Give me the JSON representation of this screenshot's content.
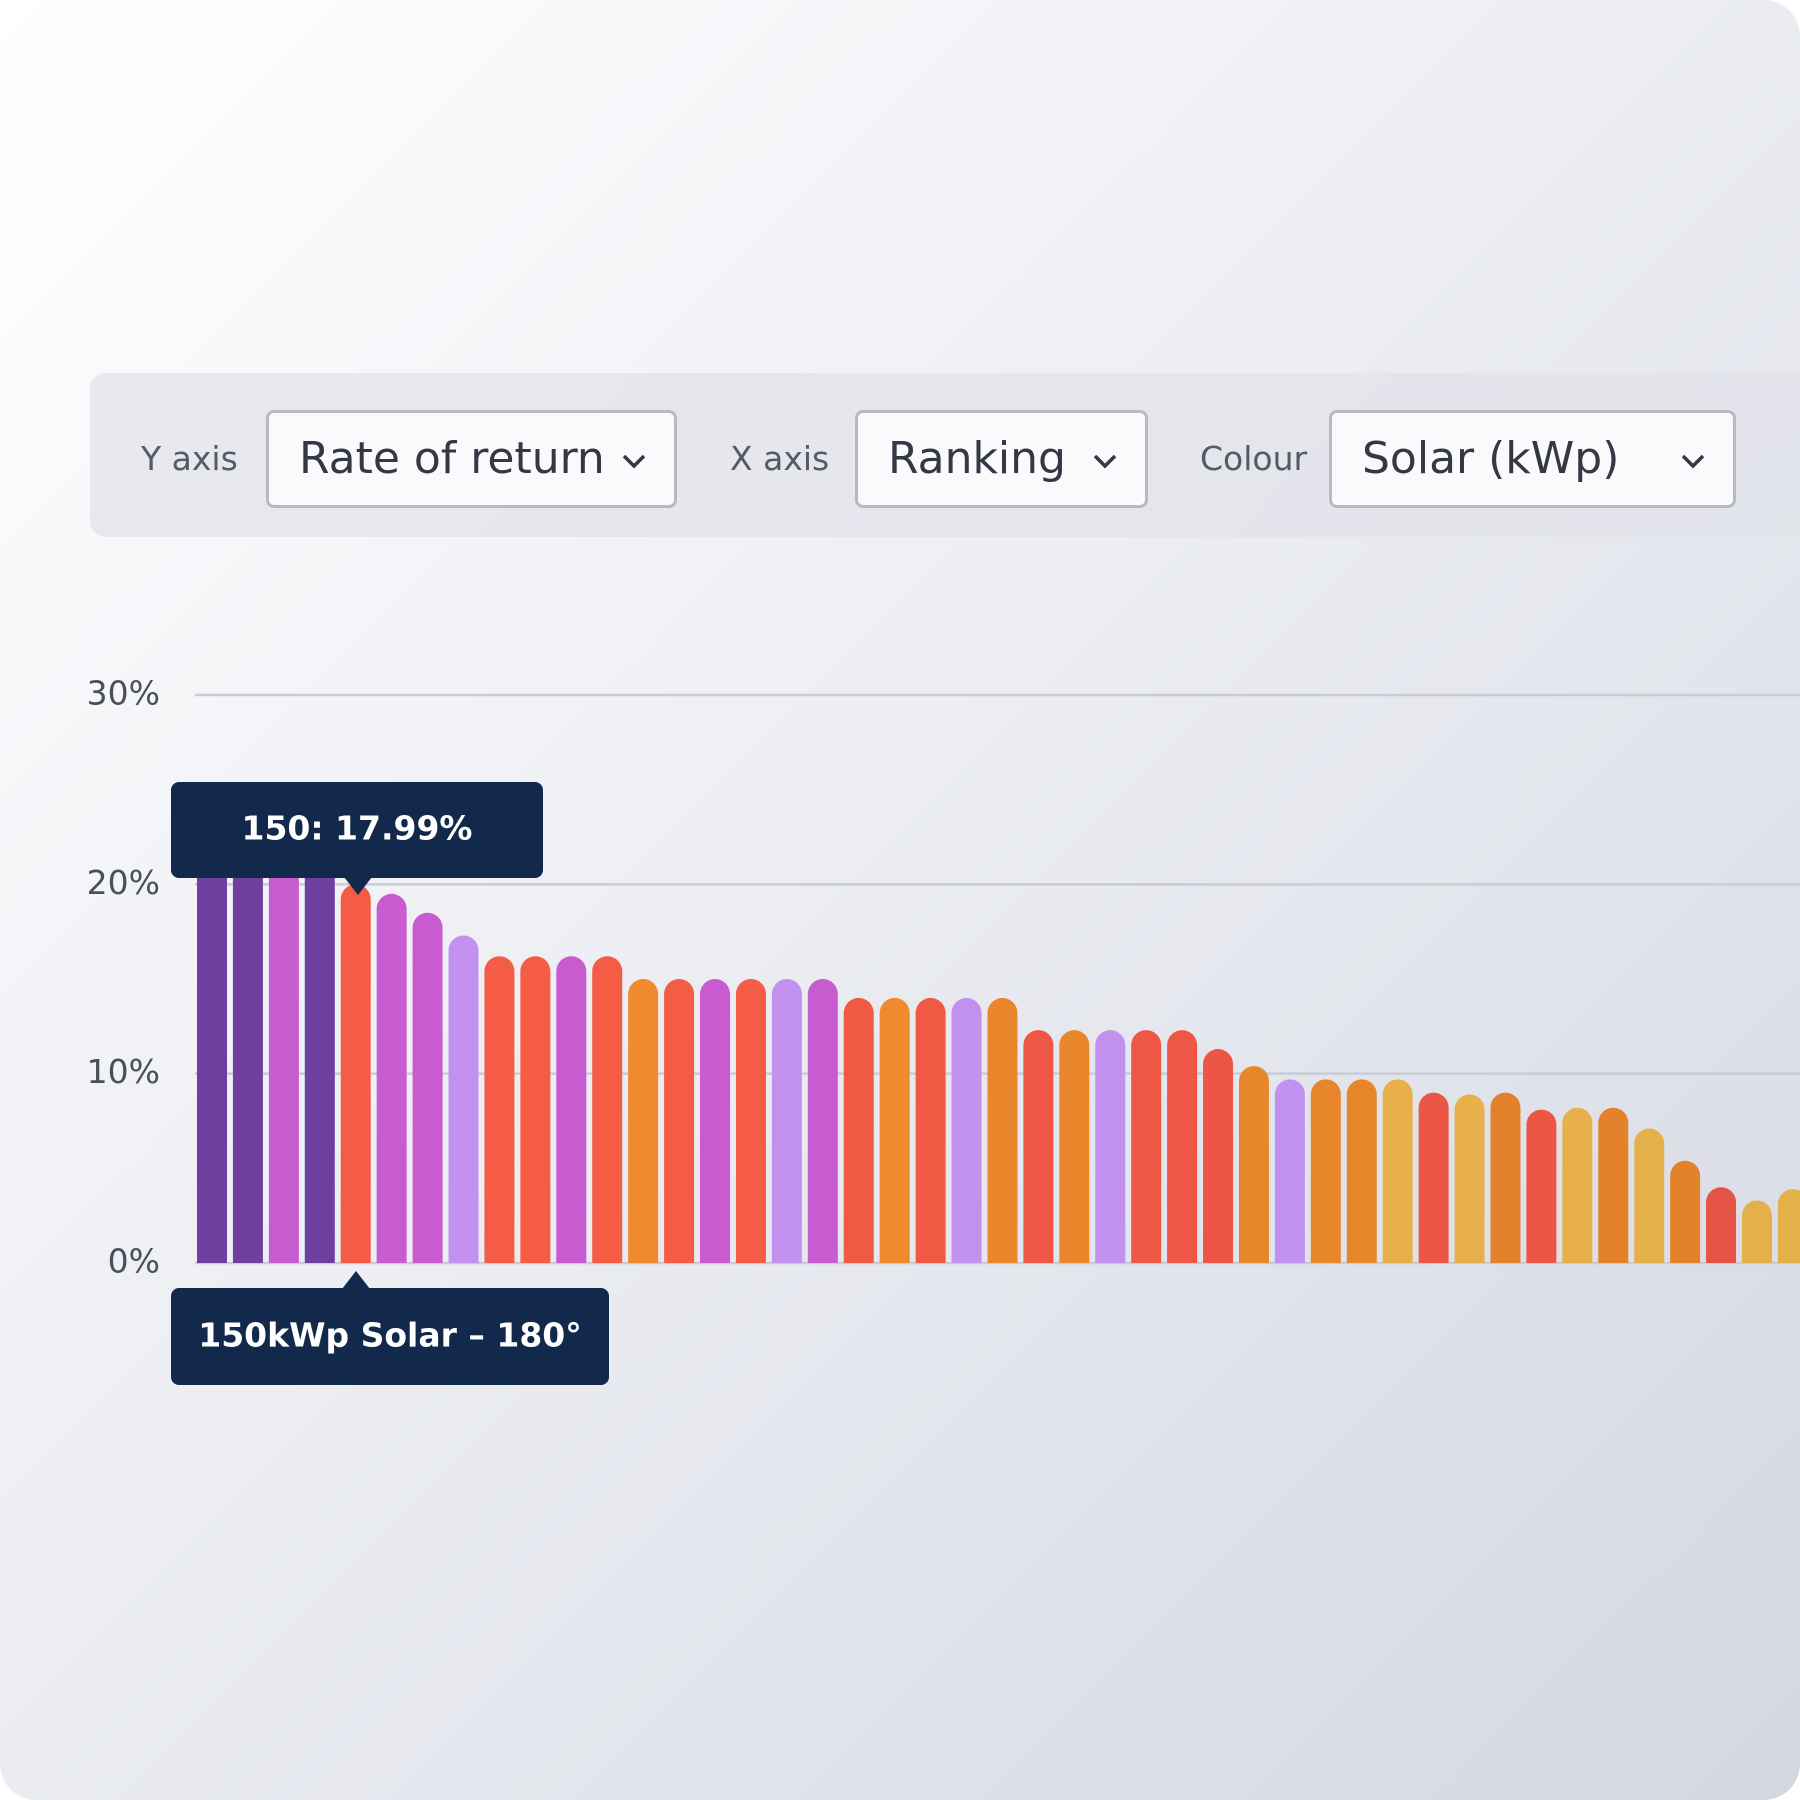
{
  "controls": [
    {
      "label": "Y axis",
      "value": "Rate of return"
    },
    {
      "label": "X axis",
      "value": "Ranking"
    },
    {
      "label": "Colour",
      "value": "Solar (kWp)"
    }
  ],
  "chart_data": {
    "type": "bar",
    "values": [
      22,
      22,
      22,
      22,
      20,
      19.5,
      18.5,
      17.3,
      16.2,
      16.2,
      16.2,
      16.2,
      15,
      15,
      15,
      15,
      15,
      15,
      14,
      14,
      14,
      14,
      14,
      12.3,
      12.3,
      12.3,
      12.3,
      12.3,
      11.3,
      10.4,
      9.7,
      9.7,
      9.7,
      9.7,
      9,
      8.9,
      9,
      8.1,
      8.2,
      8.2,
      7.1,
      5.4,
      4,
      3.3,
      3.9
    ],
    "colors": [
      "#6e3f9e",
      "#6e3f9e",
      "#c95bd0",
      "#6e3f9e",
      "#f55c45",
      "#c95bd0",
      "#c95bd0",
      "#c291f0",
      "#f55c45",
      "#f55c45",
      "#c95bd0",
      "#f55c45",
      "#ef8a2e",
      "#f55c45",
      "#c95bd0",
      "#f55c45",
      "#c291f0",
      "#c95bd0",
      "#f05a45",
      "#ef8a2e",
      "#f05a45",
      "#c291f0",
      "#ea862c",
      "#ee5745",
      "#ea862c",
      "#c291f0",
      "#ee5745",
      "#ee5745",
      "#ec5645",
      "#e8862c",
      "#c291f0",
      "#e8862c",
      "#e8862c",
      "#e8b04a",
      "#ec5645",
      "#e8b04a",
      "#e4822c",
      "#ec5645",
      "#e8b04a",
      "#e4822c",
      "#e4b04a",
      "#e4822c",
      "#e65445",
      "#e4b04a",
      "#e4b04a"
    ],
    "ylim": [
      0,
      30
    ],
    "yticks": [
      {
        "value": 0,
        "label": "0%"
      },
      {
        "value": 10,
        "label": "10%"
      },
      {
        "value": 20,
        "label": "20%"
      },
      {
        "value": 30,
        "label": "30%"
      }
    ],
    "grid": true,
    "tooltip": "150: 17.99%",
    "tooltip_label": "150kWp Solar – 180°"
  }
}
